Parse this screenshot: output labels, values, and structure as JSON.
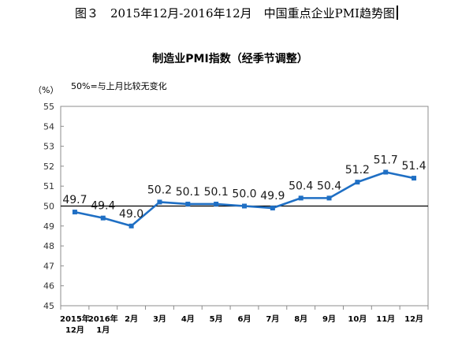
{
  "figure_title": "图３　2015年12月-2016年12月　中国重点企业PMI趋势图",
  "chart_data": {
    "type": "line",
    "title": "制造业PMI指数（经季节调整）",
    "ylabel": "（%）",
    "note": "50%=与上月比较无变化",
    "reference_line": 50,
    "ylim": [
      45,
      55
    ],
    "yticks": [
      "45",
      "46",
      "47",
      "48",
      "49",
      "50",
      "51",
      "52",
      "53",
      "54",
      "55"
    ],
    "categories": [
      [
        "2015年",
        "12月"
      ],
      [
        "2016年",
        "1月"
      ],
      [
        "2月"
      ],
      [
        "3月"
      ],
      [
        "4月"
      ],
      [
        "5月"
      ],
      [
        "6月"
      ],
      [
        "7月"
      ],
      [
        "8月"
      ],
      [
        "9月"
      ],
      [
        "10月"
      ],
      [
        "11月"
      ],
      [
        "12月"
      ]
    ],
    "series": [
      {
        "values": [
          49.7,
          49.4,
          49.0,
          50.2,
          50.1,
          50.1,
          50.0,
          49.9,
          50.4,
          50.4,
          51.2,
          51.7,
          51.4
        ],
        "labels": [
          "49.7",
          "49.4",
          "49.0",
          "50.2",
          "50.1",
          "50.1",
          "50.0",
          "49.9",
          "50.4",
          "50.4",
          "51.2",
          "51.7",
          "51.4"
        ]
      }
    ],
    "grid": false,
    "line_color": "#1f6fc4"
  }
}
